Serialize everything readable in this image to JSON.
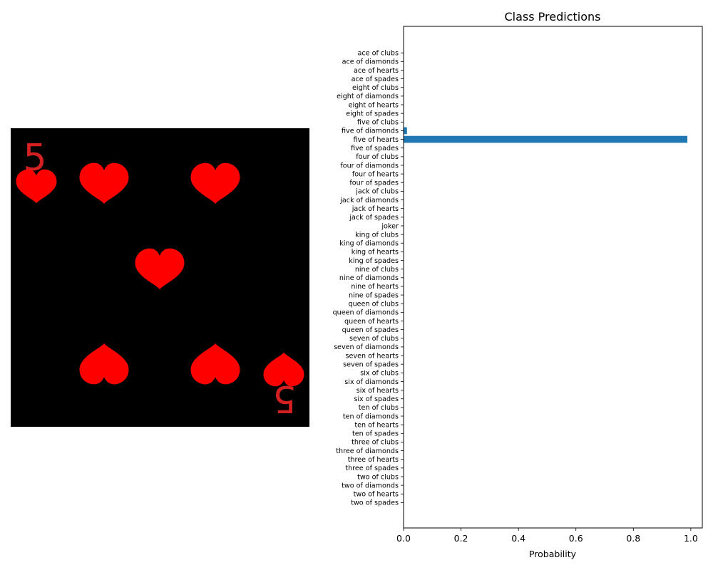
{
  "card_image": {
    "rank_label": "5",
    "suit": "hearts",
    "background_color": "#000000",
    "pip_color": "#ff0000",
    "rank_color": "#d42020",
    "pip_icon": "heart-icon"
  },
  "chart_data": {
    "type": "bar",
    "orientation": "horizontal",
    "title": "Class Predictions",
    "xlabel": "Probability",
    "ylabel": "",
    "xlim": [
      0,
      1.04
    ],
    "xticks": [
      "0.0",
      "0.2",
      "0.4",
      "0.6",
      "0.8",
      "1.0"
    ],
    "grid": false,
    "bar_color": "#1f77b4",
    "categories": [
      "ace of clubs",
      "ace of diamonds",
      "ace of hearts",
      "ace of spades",
      "eight of clubs",
      "eight of diamonds",
      "eight of hearts",
      "eight of spades",
      "five of clubs",
      "five of diamonds",
      "five of hearts",
      "five of spades",
      "four of clubs",
      "four of diamonds",
      "four of hearts",
      "four of spades",
      "jack of clubs",
      "jack of diamonds",
      "jack of hearts",
      "jack of spades",
      "joker",
      "king of clubs",
      "king of diamonds",
      "king of hearts",
      "king of spades",
      "nine of clubs",
      "nine of diamonds",
      "nine of hearts",
      "nine of spades",
      "queen of clubs",
      "queen of diamonds",
      "queen of hearts",
      "queen of spades",
      "seven of clubs",
      "seven of diamonds",
      "seven of hearts",
      "seven of spades",
      "six of clubs",
      "six of diamonds",
      "six of hearts",
      "six of spades",
      "ten of clubs",
      "ten of diamonds",
      "ten of hearts",
      "ten of spades",
      "three of clubs",
      "three of diamonds",
      "three of hearts",
      "three of spades",
      "two of clubs",
      "two of diamonds",
      "two of hearts",
      "two of spades"
    ],
    "values": [
      0,
      0,
      0,
      0,
      0,
      0,
      0,
      0,
      0,
      0.012,
      0.988,
      0,
      0,
      0,
      0,
      0,
      0,
      0,
      0,
      0,
      0,
      0,
      0,
      0,
      0,
      0,
      0,
      0,
      0,
      0,
      0,
      0,
      0,
      0,
      0,
      0,
      0,
      0,
      0,
      0,
      0,
      0,
      0,
      0,
      0,
      0,
      0,
      0,
      0,
      0,
      0,
      0,
      0
    ]
  }
}
